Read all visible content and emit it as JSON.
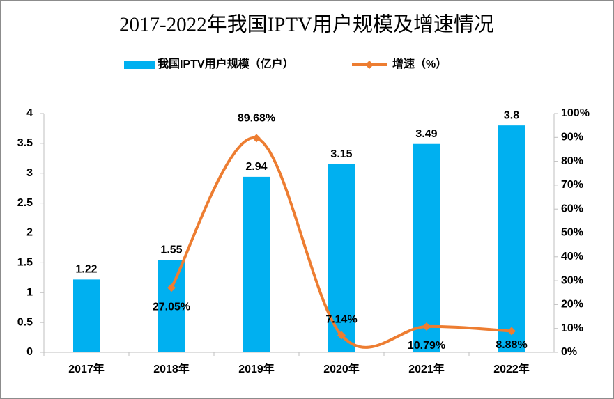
{
  "chart_data": {
    "type": "combo",
    "title": "2017-2022年我国IPTV用户规模及增速情况",
    "categories": [
      "2017年",
      "2018年",
      "2019年",
      "2020年",
      "2021年",
      "2022年"
    ],
    "series": [
      {
        "name": "我国IPTV用户规模（亿户）",
        "type": "bar",
        "color": "#00b0f0",
        "values": [
          1.22,
          1.55,
          2.94,
          3.15,
          3.49,
          3.8
        ]
      },
      {
        "name": "增速（%）",
        "type": "line",
        "axis": "y2",
        "color": "#ed7d31",
        "values": [
          null,
          27.05,
          89.68,
          7.14,
          10.79,
          8.88
        ],
        "value_labels": [
          null,
          "27.05%",
          "89.68%",
          "7.14%",
          "10.79%",
          "8.88%"
        ]
      }
    ],
    "ylim": [
      0,
      4
    ],
    "yticks": [
      0,
      0.5,
      1,
      1.5,
      2,
      2.5,
      3,
      3.5,
      4
    ],
    "y2lim": [
      0,
      100
    ],
    "y2ticks": [
      {
        "value": 0,
        "label": "0%"
      },
      {
        "value": 10,
        "label": "10%"
      },
      {
        "value": 20,
        "label": "20%"
      },
      {
        "value": 30,
        "label": "30%"
      },
      {
        "value": 40,
        "label": "40%"
      },
      {
        "value": 50,
        "label": "50%"
      },
      {
        "value": 60,
        "label": "60%"
      },
      {
        "value": 70,
        "label": "70%"
      },
      {
        "value": 80,
        "label": "80%"
      },
      {
        "value": 90,
        "label": "90%"
      },
      {
        "value": 100,
        "label": "100%"
      }
    ],
    "grid": false,
    "legend": "top"
  }
}
